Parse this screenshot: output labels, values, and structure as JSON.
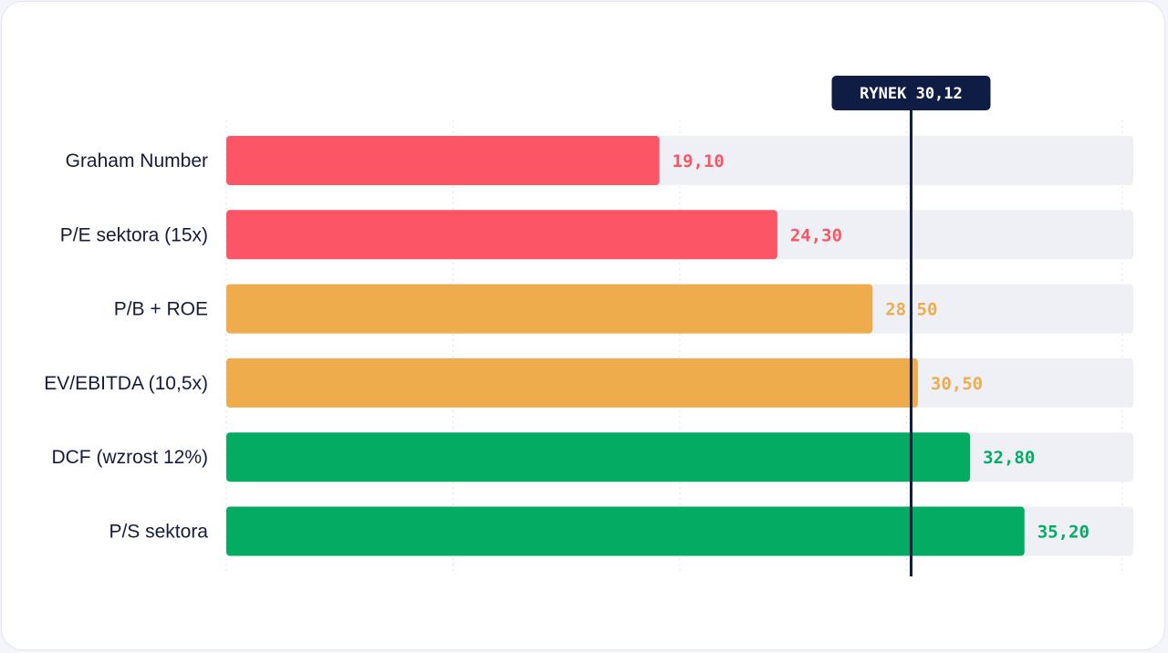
{
  "chart_data": {
    "type": "bar",
    "orientation": "horizontal",
    "categories": [
      "Graham Number",
      "P/E sektora (15x)",
      "P/B + ROE",
      "EV/EBITDA (10,5x)",
      "DCF (wzrost 12%)",
      "P/S sektora"
    ],
    "values": [
      19.1,
      24.3,
      28.5,
      30.5,
      32.8,
      35.2
    ],
    "value_labels": [
      "19,10",
      "24,30",
      "28,50",
      "30,50",
      "32,80",
      "35,20"
    ],
    "colors": [
      "#fc5565",
      "#fc5565",
      "#eeac4c",
      "#eeac4c",
      "#04ab63",
      "#04ab63"
    ],
    "xlim": [
      0,
      40
    ],
    "grid": true,
    "track_color": "#eef0f6",
    "reference_line": {
      "value": 30.12,
      "label": "RYNEK 30,12",
      "color": "#0f1c44"
    }
  }
}
